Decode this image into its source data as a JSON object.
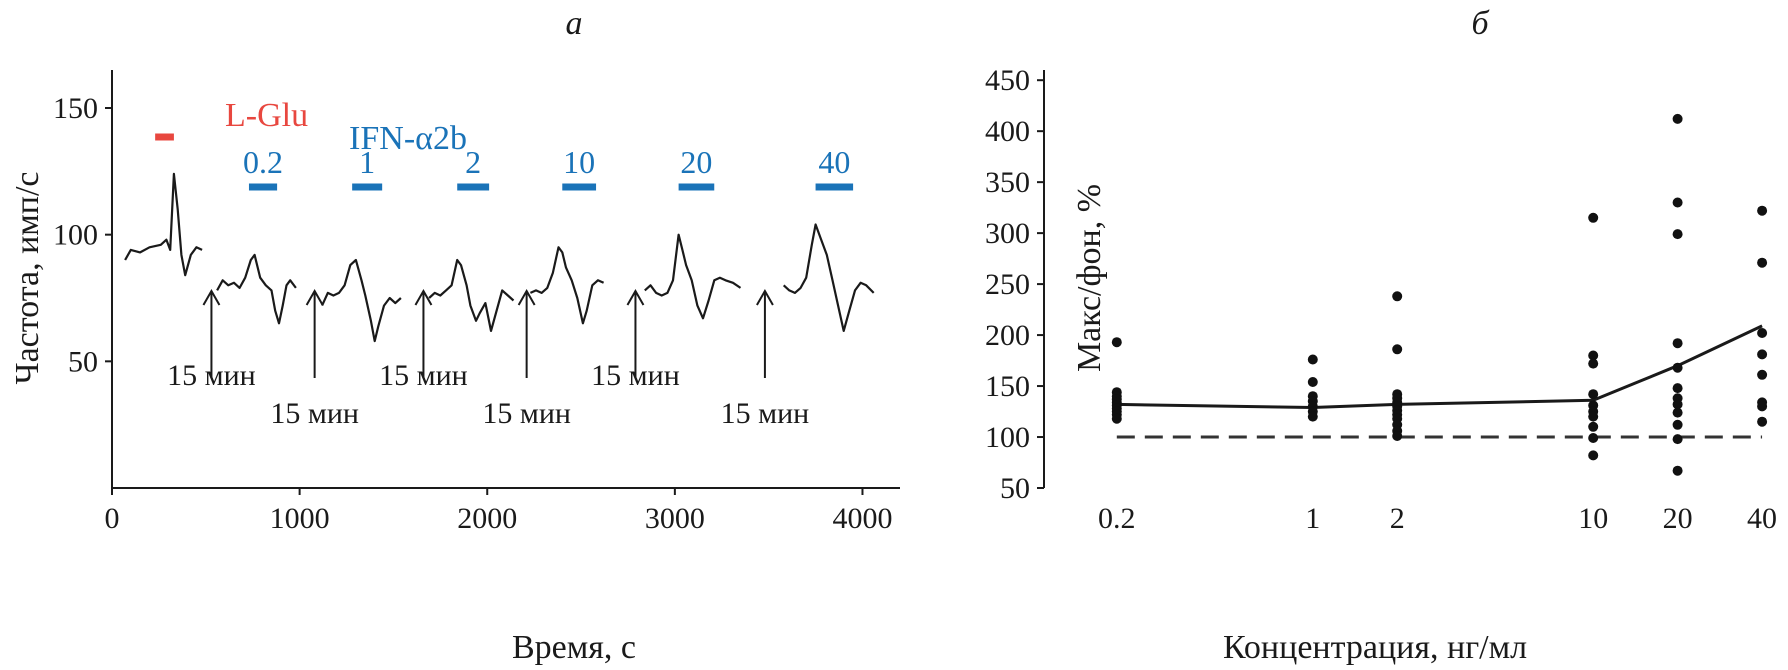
{
  "panel_labels": {
    "a": "а",
    "b": "б"
  },
  "chart_data": [
    {
      "type": "line",
      "xlabel": "Время, с",
      "ylabel": "Частота, имп/с",
      "xlim": [
        0,
        4200
      ],
      "ylim": [
        0,
        165
      ],
      "xticks": [
        0,
        1000,
        2000,
        3000,
        4000
      ],
      "yticks": [
        50,
        100,
        150
      ],
      "stimulus": {
        "label": "L-Glu",
        "color": "#e8473f",
        "start": 230,
        "end": 330
      },
      "treatment": {
        "label": "IFN-α2b",
        "color": "#1a73b8"
      },
      "doses": [
        {
          "label": "0.2",
          "start": 730,
          "end": 880
        },
        {
          "label": "1",
          "start": 1280,
          "end": 1440
        },
        {
          "label": "2",
          "start": 1840,
          "end": 2010
        },
        {
          "label": "10",
          "start": 2400,
          "end": 2580
        },
        {
          "label": "20",
          "start": 3020,
          "end": 3210
        },
        {
          "label": "40",
          "start": 3750,
          "end": 3950
        }
      ],
      "intervals": [
        {
          "label": "15 мин",
          "x": 530,
          "label_row": 1
        },
        {
          "label": "15 мин",
          "x": 1080,
          "label_row": 2
        },
        {
          "label": "15 мин",
          "x": 1660,
          "label_row": 1
        },
        {
          "label": "15 мин",
          "x": 2210,
          "label_row": 2
        },
        {
          "label": "15 мин",
          "x": 2790,
          "label_row": 1
        },
        {
          "label": "15 мин",
          "x": 3480,
          "label_row": 2
        }
      ],
      "series": [
        {
          "values": [
            [
              70,
              90
            ],
            [
              100,
              94
            ],
            [
              150,
              93
            ],
            [
              200,
              95
            ],
            [
              260,
              96
            ],
            [
              290,
              98
            ],
            [
              310,
              94
            ],
            [
              330,
              124
            ],
            [
              350,
              110
            ],
            [
              370,
              92
            ],
            [
              390,
              84
            ],
            [
              420,
              92
            ],
            [
              450,
              95
            ],
            [
              480,
              94
            ]
          ]
        },
        {
          "values": [
            [
              560,
              78
            ],
            [
              590,
              82
            ],
            [
              620,
              80
            ],
            [
              650,
              81
            ],
            [
              680,
              79
            ],
            [
              710,
              83
            ],
            [
              740,
              90
            ],
            [
              760,
              92
            ],
            [
              790,
              83
            ],
            [
              820,
              80
            ],
            [
              850,
              78
            ],
            [
              870,
              70
            ],
            [
              890,
              65
            ],
            [
              910,
              72
            ],
            [
              930,
              80
            ],
            [
              950,
              82
            ],
            [
              980,
              79
            ]
          ]
        },
        {
          "values": [
            [
              1120,
              72
            ],
            [
              1150,
              77
            ],
            [
              1180,
              76
            ],
            [
              1210,
              77
            ],
            [
              1240,
              80
            ],
            [
              1270,
              88
            ],
            [
              1300,
              90
            ],
            [
              1330,
              82
            ],
            [
              1350,
              76
            ],
            [
              1380,
              66
            ],
            [
              1400,
              58
            ],
            [
              1420,
              64
            ],
            [
              1450,
              72
            ],
            [
              1480,
              75
            ],
            [
              1510,
              73
            ],
            [
              1540,
              75
            ]
          ]
        },
        {
          "values": [
            [
              1690,
              75
            ],
            [
              1720,
              77
            ],
            [
              1750,
              76
            ],
            [
              1780,
              78
            ],
            [
              1810,
              80
            ],
            [
              1840,
              90
            ],
            [
              1860,
              88
            ],
            [
              1890,
              80
            ],
            [
              1910,
              72
            ],
            [
              1940,
              66
            ],
            [
              1960,
              69
            ],
            [
              1990,
              73
            ],
            [
              2020,
              62
            ],
            [
              2050,
              70
            ],
            [
              2080,
              78
            ],
            [
              2110,
              76
            ],
            [
              2140,
              74
            ]
          ]
        },
        {
          "values": [
            [
              2230,
              77
            ],
            [
              2260,
              78
            ],
            [
              2290,
              77
            ],
            [
              2320,
              79
            ],
            [
              2350,
              85
            ],
            [
              2380,
              95
            ],
            [
              2400,
              93
            ],
            [
              2420,
              87
            ],
            [
              2450,
              82
            ],
            [
              2480,
              75
            ],
            [
              2510,
              65
            ],
            [
              2530,
              70
            ],
            [
              2560,
              80
            ],
            [
              2590,
              82
            ],
            [
              2620,
              81
            ]
          ]
        },
        {
          "values": [
            [
              2840,
              78
            ],
            [
              2870,
              80
            ],
            [
              2900,
              77
            ],
            [
              2930,
              76
            ],
            [
              2960,
              77
            ],
            [
              2990,
              82
            ],
            [
              3020,
              100
            ],
            [
              3040,
              94
            ],
            [
              3060,
              88
            ],
            [
              3090,
              82
            ],
            [
              3120,
              72
            ],
            [
              3150,
              67
            ],
            [
              3180,
              74
            ],
            [
              3210,
              82
            ],
            [
              3240,
              83
            ],
            [
              3270,
              82
            ],
            [
              3310,
              81
            ],
            [
              3350,
              79
            ]
          ]
        },
        {
          "values": [
            [
              3580,
              80
            ],
            [
              3610,
              78
            ],
            [
              3640,
              77
            ],
            [
              3670,
              79
            ],
            [
              3700,
              83
            ],
            [
              3730,
              96
            ],
            [
              3750,
              104
            ],
            [
              3780,
              98
            ],
            [
              3810,
              92
            ],
            [
              3840,
              82
            ],
            [
              3870,
              72
            ],
            [
              3900,
              62
            ],
            [
              3930,
              70
            ],
            [
              3960,
              78
            ],
            [
              3990,
              81
            ],
            [
              4020,
              80
            ],
            [
              4060,
              77
            ]
          ]
        }
      ]
    },
    {
      "type": "scatter",
      "xlabel": "Концентрация, нг/мл",
      "ylabel": "Макс/фон, %",
      "xscale": "log",
      "xlim": [
        0.11,
        42
      ],
      "ylim": [
        50,
        460
      ],
      "xticks": [
        0.2,
        1,
        2,
        10,
        20,
        40
      ],
      "xticklabels": [
        "0.2",
        "1",
        "2",
        "10",
        "20",
        "40"
      ],
      "yticks": [
        50,
        100,
        150,
        200,
        250,
        300,
        350,
        400,
        450
      ],
      "points": [
        [
          0.2,
          193
        ],
        [
          0.2,
          144
        ],
        [
          0.2,
          140
        ],
        [
          0.2,
          137
        ],
        [
          0.2,
          134
        ],
        [
          0.2,
          131
        ],
        [
          0.2,
          128
        ],
        [
          0.2,
          125
        ],
        [
          0.2,
          122
        ],
        [
          0.2,
          118
        ],
        [
          1,
          176
        ],
        [
          1,
          154
        ],
        [
          1,
          140
        ],
        [
          1,
          135
        ],
        [
          1,
          130
        ],
        [
          1,
          125
        ],
        [
          1,
          120
        ],
        [
          2,
          238
        ],
        [
          2,
          186
        ],
        [
          2,
          142
        ],
        [
          2,
          138
        ],
        [
          2,
          134
        ],
        [
          2,
          130
        ],
        [
          2,
          126
        ],
        [
          2,
          122
        ],
        [
          2,
          118
        ],
        [
          2,
          112
        ],
        [
          2,
          106
        ],
        [
          2,
          101
        ],
        [
          10,
          315
        ],
        [
          10,
          180
        ],
        [
          10,
          172
        ],
        [
          10,
          142
        ],
        [
          10,
          131
        ],
        [
          10,
          125
        ],
        [
          10,
          120
        ],
        [
          10,
          110
        ],
        [
          10,
          99
        ],
        [
          10,
          82
        ],
        [
          20,
          412
        ],
        [
          20,
          330
        ],
        [
          20,
          299
        ],
        [
          20,
          192
        ],
        [
          20,
          168
        ],
        [
          20,
          148
        ],
        [
          20,
          138
        ],
        [
          20,
          132
        ],
        [
          20,
          124
        ],
        [
          20,
          112
        ],
        [
          20,
          98
        ],
        [
          20,
          67
        ],
        [
          40,
          322
        ],
        [
          40,
          271
        ],
        [
          40,
          202
        ],
        [
          40,
          181
        ],
        [
          40,
          161
        ],
        [
          40,
          134
        ],
        [
          40,
          130
        ],
        [
          40,
          115
        ]
      ],
      "fit_line": [
        [
          0.2,
          132
        ],
        [
          1,
          129
        ],
        [
          2,
          132
        ],
        [
          10,
          136
        ],
        [
          20,
          170
        ],
        [
          40,
          209
        ]
      ],
      "reference_line": 100
    }
  ]
}
